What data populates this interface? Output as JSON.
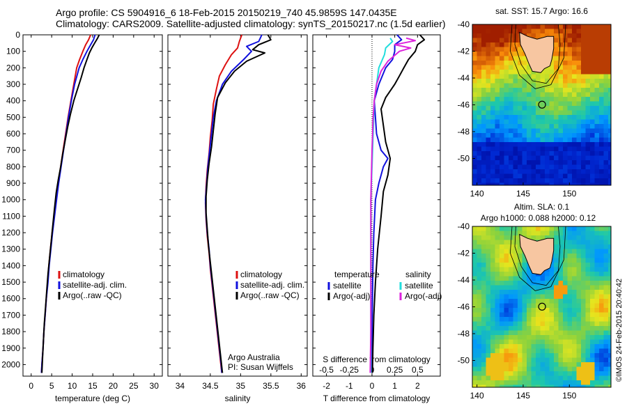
{
  "header": {
    "line1": "Argo profile: CS 5904916_6 18-Feb-2015 20150219_740 45.9859S 147.0435E",
    "line2": "Climatology: CARS2009. Satellite-adjusted climatology: synTS_20150217.nc (1.5d earlier)"
  },
  "colors": {
    "climatology": "#dd1111",
    "satellite": "#1111dd",
    "argo": "#000000",
    "sat_salinity": "#22dddd",
    "argo_salinity_adj": "#dd22dd"
  },
  "chart_data": [
    {
      "type": "line",
      "id": "temperature",
      "xlabel": "temperature (deg C)",
      "xlim": [
        -2,
        32
      ],
      "xticks": [
        0,
        5,
        10,
        15,
        20,
        25,
        30
      ],
      "ylim": [
        2070,
        0
      ],
      "yticks": [
        0,
        100,
        200,
        300,
        400,
        500,
        600,
        700,
        800,
        900,
        1000,
        1100,
        1200,
        1300,
        1400,
        1500,
        1600,
        1700,
        1800,
        1900,
        2000
      ],
      "legend": [
        "climatology",
        "satellite-adj. clim.",
        "Argo(..raw -QC)"
      ],
      "series": [
        {
          "name": "climatology",
          "color": "#dd1111",
          "points": [
            [
              14.5,
              0
            ],
            [
              14,
              30
            ],
            [
              13.3,
              60
            ],
            [
              12.6,
              100
            ],
            [
              11.8,
              150
            ],
            [
              11.1,
              200
            ],
            [
              10.4,
              300
            ],
            [
              9.7,
              400
            ],
            [
              9.0,
              500
            ],
            [
              8.4,
              600
            ],
            [
              7.8,
              700
            ],
            [
              7.2,
              800
            ],
            [
              6.6,
              900
            ],
            [
              6.1,
              1000
            ],
            [
              5.6,
              1100
            ],
            [
              5.1,
              1200
            ],
            [
              4.7,
              1300
            ],
            [
              4.3,
              1400
            ],
            [
              4.0,
              1500
            ],
            [
              3.7,
              1600
            ],
            [
              3.4,
              1700
            ],
            [
              3.1,
              1800
            ],
            [
              2.9,
              1900
            ],
            [
              2.6,
              2000
            ],
            [
              2.5,
              2050
            ]
          ]
        },
        {
          "name": "satellite-adj. clim.",
          "color": "#1111dd",
          "points": [
            [
              15.6,
              0
            ],
            [
              15.2,
              30
            ],
            [
              14.5,
              60
            ],
            [
              13.6,
              100
            ],
            [
              12.6,
              150
            ],
            [
              11.7,
              200
            ],
            [
              10.6,
              300
            ],
            [
              9.8,
              400
            ],
            [
              9.1,
              500
            ],
            [
              8.5,
              600
            ],
            [
              7.9,
              700
            ],
            [
              7.3,
              800
            ],
            [
              6.7,
              900
            ],
            [
              6.2,
              1000
            ],
            [
              5.7,
              1100
            ],
            [
              5.2,
              1200
            ],
            [
              4.8,
              1300
            ],
            [
              4.4,
              1400
            ],
            [
              4.1,
              1500
            ],
            [
              3.7,
              1600
            ],
            [
              3.4,
              1700
            ],
            [
              3.1,
              1800
            ],
            [
              2.9,
              1900
            ],
            [
              2.6,
              2000
            ],
            [
              2.5,
              2050
            ]
          ]
        },
        {
          "name": "Argo(..raw -QC)",
          "color": "#000000",
          "points": [
            [
              16.6,
              0
            ],
            [
              16.2,
              20
            ],
            [
              15.5,
              50
            ],
            [
              14.8,
              80
            ],
            [
              14.2,
              110
            ],
            [
              13.6,
              150
            ],
            [
              12.9,
              200
            ],
            [
              12.2,
              260
            ],
            [
              11.3,
              330
            ],
            [
              10.4,
              400
            ],
            [
              9.6,
              480
            ],
            [
              8.9,
              560
            ],
            [
              8.3,
              640
            ],
            [
              7.7,
              720
            ],
            [
              7.2,
              800
            ],
            [
              6.6,
              880
            ],
            [
              6.1,
              960
            ],
            [
              5.7,
              1050
            ],
            [
              5.3,
              1150
            ],
            [
              4.9,
              1250
            ],
            [
              4.5,
              1350
            ],
            [
              4.1,
              1450
            ],
            [
              3.8,
              1550
            ],
            [
              3.5,
              1650
            ],
            [
              3.2,
              1750
            ],
            [
              3.0,
              1850
            ],
            [
              2.8,
              1950
            ],
            [
              2.6,
              2050
            ]
          ]
        }
      ]
    },
    {
      "type": "line",
      "id": "salinity",
      "xlabel": "salinity",
      "xlim": [
        33.8,
        36.1
      ],
      "xticks": [
        34,
        34.5,
        35,
        35.5,
        36
      ],
      "ylim": [
        2070,
        0
      ],
      "legend": [
        "climatology",
        "satellite-adj. clim.",
        "Argo(..raw -QC)"
      ],
      "series": [
        {
          "name": "climatology",
          "color": "#dd1111",
          "points": [
            [
              35.02,
              0
            ],
            [
              34.98,
              40
            ],
            [
              34.95,
              80
            ],
            [
              34.85,
              120
            ],
            [
              34.75,
              180
            ],
            [
              34.65,
              250
            ],
            [
              34.6,
              330
            ],
            [
              34.55,
              420
            ],
            [
              34.53,
              520
            ],
            [
              34.5,
              620
            ],
            [
              34.48,
              720
            ],
            [
              34.45,
              820
            ],
            [
              34.43,
              920
            ],
            [
              34.42,
              1020
            ],
            [
              34.43,
              1120
            ],
            [
              34.45,
              1220
            ],
            [
              34.48,
              1320
            ],
            [
              34.5,
              1420
            ],
            [
              34.53,
              1520
            ],
            [
              34.56,
              1620
            ],
            [
              34.59,
              1720
            ],
            [
              34.62,
              1820
            ],
            [
              34.65,
              1920
            ],
            [
              34.68,
              2020
            ],
            [
              34.69,
              2050
            ]
          ]
        },
        {
          "name": "satellite-adj. clim.",
          "color": "#1111dd",
          "points": [
            [
              35.35,
              0
            ],
            [
              35.3,
              40
            ],
            [
              35.1,
              70
            ],
            [
              35.18,
              100
            ],
            [
              35.05,
              150
            ],
            [
              34.85,
              220
            ],
            [
              34.7,
              300
            ],
            [
              34.6,
              400
            ],
            [
              34.55,
              500
            ],
            [
              34.52,
              600
            ],
            [
              34.49,
              700
            ],
            [
              34.46,
              800
            ],
            [
              34.44,
              900
            ],
            [
              34.42,
              1000
            ],
            [
              34.43,
              1100
            ],
            [
              34.45,
              1200
            ],
            [
              34.48,
              1300
            ],
            [
              34.5,
              1400
            ],
            [
              34.53,
              1500
            ],
            [
              34.56,
              1600
            ],
            [
              34.59,
              1700
            ],
            [
              34.62,
              1800
            ],
            [
              34.65,
              1900
            ],
            [
              34.68,
              2000
            ],
            [
              34.69,
              2050
            ]
          ]
        },
        {
          "name": "Argo(..raw -QC)",
          "color": "#000000",
          "points": [
            [
              35.45,
              0
            ],
            [
              35.5,
              30
            ],
            [
              35.3,
              60
            ],
            [
              35.2,
              90
            ],
            [
              35.4,
              110
            ],
            [
              35.1,
              160
            ],
            [
              34.9,
              220
            ],
            [
              34.75,
              290
            ],
            [
              34.62,
              380
            ],
            [
              34.58,
              480
            ],
            [
              34.55,
              580
            ],
            [
              34.52,
              680
            ],
            [
              34.48,
              780
            ],
            [
              34.45,
              880
            ],
            [
              34.43,
              980
            ],
            [
              34.43,
              1080
            ],
            [
              34.45,
              1180
            ],
            [
              34.47,
              1280
            ],
            [
              34.5,
              1380
            ],
            [
              34.53,
              1480
            ],
            [
              34.56,
              1580
            ],
            [
              34.59,
              1680
            ],
            [
              34.62,
              1780
            ],
            [
              34.65,
              1880
            ],
            [
              34.68,
              1980
            ],
            [
              34.7,
              2050
            ]
          ]
        }
      ],
      "annotation": [
        "Argo Australia",
        "PI: Susan Wijffels"
      ]
    },
    {
      "type": "line",
      "id": "difference",
      "xlabel": "T difference from climatology",
      "xlabel2": "S difference from climatology",
      "xlim": [
        -2.6,
        3.0
      ],
      "xticks": [
        -2,
        -1,
        0,
        1,
        2
      ],
      "x2ticks": [
        "-0.5",
        "-0.25",
        "0",
        "0.25",
        "0.5"
      ],
      "ylim": [
        2070,
        0
      ],
      "legend_temperature_title": "temperature",
      "legend_salinity_title": "salinity",
      "legend_temperature": [
        "satellite",
        "Argo(-adj)"
      ],
      "legend_salinity": [
        "satellite",
        "Argo(-adj)"
      ],
      "series": [
        {
          "name": "T satellite",
          "color": "#1111dd",
          "points": [
            [
              1.1,
              0
            ],
            [
              1.3,
              30
            ],
            [
              1.0,
              60
            ],
            [
              1.0,
              100
            ],
            [
              0.9,
              150
            ],
            [
              0.6,
              200
            ],
            [
              0.3,
              300
            ],
            [
              0.1,
              400
            ],
            [
              0.15,
              500
            ],
            [
              0.2,
              600
            ],
            [
              0.4,
              700
            ],
            [
              0.7,
              750
            ],
            [
              0.5,
              800
            ],
            [
              0.3,
              900
            ],
            [
              0.15,
              1000
            ],
            [
              0.08,
              1200
            ],
            [
              0.04,
              1400
            ],
            [
              0.02,
              1600
            ],
            [
              0,
              1800
            ],
            [
              0,
              2050
            ]
          ]
        },
        {
          "name": "T Argo(-adj)",
          "color": "#000000",
          "points": [
            [
              2.1,
              0
            ],
            [
              2.3,
              30
            ],
            [
              2.0,
              60
            ],
            [
              1.9,
              100
            ],
            [
              1.6,
              150
            ],
            [
              1.4,
              200
            ],
            [
              1.2,
              250
            ],
            [
              1.0,
              300
            ],
            [
              0.6,
              380
            ],
            [
              0.4,
              450
            ],
            [
              0.5,
              550
            ],
            [
              0.6,
              650
            ],
            [
              0.8,
              750
            ],
            [
              0.7,
              850
            ],
            [
              0.5,
              950
            ],
            [
              0.4,
              1100
            ],
            [
              0.25,
              1300
            ],
            [
              0.15,
              1500
            ],
            [
              0.08,
              1700
            ],
            [
              0.04,
              1900
            ],
            [
              0.02,
              2050
            ]
          ]
        },
        {
          "name": "S satellite",
          "color": "#22dddd",
          "points": [
            [
              0.8,
              20
            ],
            [
              0.9,
              40
            ],
            [
              0.6,
              80
            ],
            [
              0.55,
              120
            ],
            [
              0.3,
              200
            ],
            [
              0.2,
              300
            ],
            [
              0.1,
              400
            ],
            [
              0.05,
              600
            ],
            [
              0,
              800
            ],
            [
              -0.05,
              1000
            ],
            [
              -0.05,
              1400
            ],
            [
              -0.05,
              1800
            ],
            [
              -0.05,
              2050
            ]
          ]
        },
        {
          "name": "S Argo(-adj)",
          "color": "#dd22dd",
          "points": [
            [
              1.5,
              20
            ],
            [
              1.9,
              35
            ],
            [
              1.0,
              60
            ],
            [
              1.7,
              80
            ],
            [
              1.2,
              100
            ],
            [
              0.7,
              160
            ],
            [
              0.4,
              220
            ],
            [
              0.2,
              300
            ],
            [
              0.1,
              400
            ],
            [
              0.05,
              500
            ],
            [
              0,
              700
            ],
            [
              -0.05,
              1000
            ],
            [
              -0.05,
              1400
            ],
            [
              -0.05,
              1800
            ],
            [
              -0.08,
              2050
            ]
          ]
        }
      ]
    },
    {
      "type": "heatmap",
      "id": "sst_map",
      "title": "sat. SST: 15.7 Argo: 16.6",
      "xlim": [
        139.5,
        154.5
      ],
      "ylim": [
        -52,
        -40
      ],
      "xticks": [
        140,
        145,
        150
      ],
      "yticks": [
        -40,
        -42,
        -44,
        -46,
        -48,
        -50
      ],
      "marker": [
        147.0435,
        -45.9859
      ]
    },
    {
      "type": "heatmap",
      "id": "sla_map",
      "title": "Altim. SLA: 0.1",
      "subtitle": "Argo h1000: 0.088 h2000: 0.12",
      "xlim": [
        139.5,
        154.5
      ],
      "ylim": [
        -52,
        -40
      ],
      "xticks": [
        140,
        145,
        150
      ],
      "yticks": [
        -40,
        -42,
        -44,
        -46,
        -48,
        -50
      ],
      "marker": [
        147.0435,
        -45.9859
      ]
    }
  ],
  "credit": "©IMOS 24-Feb-2015 20:40:42"
}
